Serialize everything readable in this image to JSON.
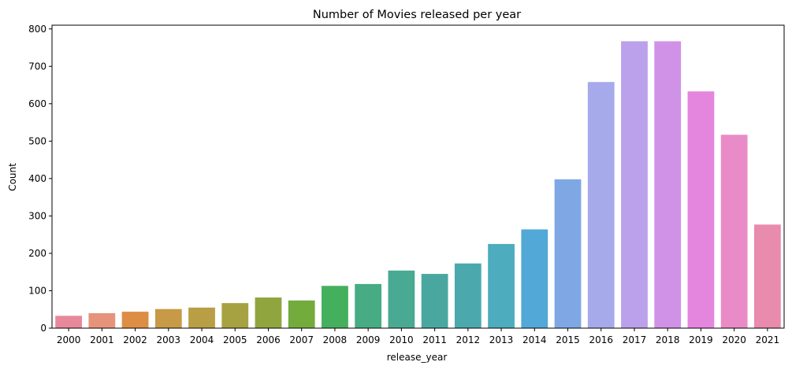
{
  "chart_data": {
    "type": "bar",
    "title": "Number of Movies released per year",
    "xlabel": "release_year",
    "ylabel": "Count",
    "ylim": [
      0,
      810
    ],
    "yticks": [
      0,
      100,
      200,
      300,
      400,
      500,
      600,
      700,
      800
    ],
    "grid": false,
    "categories": [
      "2000",
      "2001",
      "2002",
      "2003",
      "2004",
      "2005",
      "2006",
      "2007",
      "2008",
      "2009",
      "2010",
      "2011",
      "2012",
      "2013",
      "2014",
      "2015",
      "2016",
      "2017",
      "2018",
      "2019",
      "2020",
      "2021"
    ],
    "values": [
      33,
      40,
      44,
      51,
      55,
      67,
      82,
      74,
      113,
      118,
      154,
      145,
      173,
      225,
      264,
      398,
      658,
      767,
      767,
      633,
      517,
      277
    ],
    "colors": [
      "#e8889b",
      "#e6937c",
      "#dd8e44",
      "#c69a47",
      "#b89f45",
      "#a6a241",
      "#91a53f",
      "#73ab3d",
      "#44af5c",
      "#47ab84",
      "#49a993",
      "#4aa79f",
      "#4ba9ad",
      "#4dacbd",
      "#52a8d6",
      "#7fa7e4",
      "#a6a9ea",
      "#bba1eb",
      "#d092e6",
      "#e586de",
      "#e98bc6",
      "#e88bac"
    ]
  }
}
